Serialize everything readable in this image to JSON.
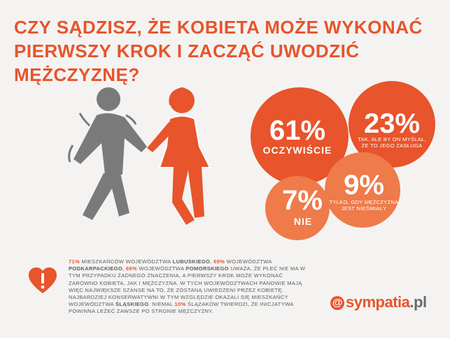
{
  "title": {
    "line1": "CZY SĄDZISZ, ŻE KOBIETA MOŻE WYKONAĆ",
    "line2": "PIERWSZY KROK I ZACZĄĆ UWODZIĆ MĘŻCZYZNĘ?"
  },
  "colors": {
    "accent": "#e8542b",
    "bubble_main": "#e8542b",
    "bubble_light": "#ef7a4a",
    "figure_gray": "#7a7a7a",
    "text_gray": "#5d5d5d"
  },
  "chart_data": {
    "type": "bubble",
    "series": [
      {
        "value": 61,
        "pct_label": "61%",
        "label": "OCZYWIŚCIE",
        "sub": []
      },
      {
        "value": 23,
        "pct_label": "23%",
        "label": "",
        "sub": [
          "TAK, ALE BY ON MYŚLAŁ,",
          "ŻE TO JEGO ZASŁUGA"
        ]
      },
      {
        "value": 7,
        "pct_label": "7%",
        "label": "NIE",
        "sub": []
      },
      {
        "value": 9,
        "pct_label": "9%",
        "label": "",
        "sub": [
          "TYLKO, GDY MĘŻCZYZNA",
          "JEST NIEŚMIAŁY"
        ]
      }
    ]
  },
  "info": {
    "p1_num": "71%",
    "p1_text": " MIESZKAŃCÓW WOJEWÓDZTWA ",
    "p1_region": "LUBUSKIEGO",
    "p2_num": "69%",
    "p2_text": " WOJEWÓDZTWA ",
    "p2_region": "PODKARPACKIEGO",
    "p3_num": "65%",
    "p3_text": " WOJEWÓDZTWA ",
    "p3_region": "POMORSKIEGO",
    "p4_text": " UWAŻA, ŻE PŁEĆ NIE MA W TYM PRZYPADKU ŻADNEGO ZNACZENIA, A PIERWSZY KROK MOŻE WYKONAĆ ZARÓWNO KOBIETA, JAK I MĘŻCZYZNA. W TYCH WOJEWÓDZTWACH PANOWIE MAJĄ WIĘC NAJWIĘKSZE SZANSE NA TO, ŻE ZOSTANĄ UWIEDZENI PRZEZ KOBIETĘ. NAJBARDZIEJ KONSERWATYWNI W TYM WZGLĘDZIE OKAZALI SIĘ MIESZKAŃCY WOJEWÓDZTWA ",
    "p4_region": "ŚLĄSKIEGO",
    "p5_text": ". NIEMAL ",
    "p5_num": "10%",
    "p6_text": " ŚLĄZAKÓW TWIERDZI, ŻE INICJATYWA POWINNA LEŻEĆ ZAWSZE PO STRONIE MĘŻCZYZNY."
  },
  "logo": {
    "at": "@",
    "name": "sympatia",
    "tld": ".pl"
  }
}
